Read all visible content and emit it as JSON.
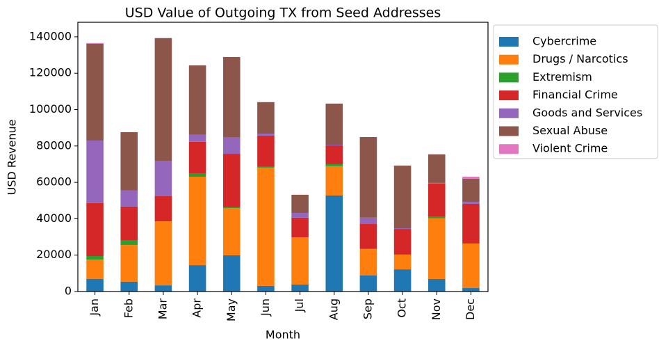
{
  "chart_data": {
    "type": "stacked_bar",
    "title": "USD Value of Outgoing TX from Seed Addresses",
    "x_label": "Month",
    "y_label": "USD Revenue",
    "categories": [
      "Jan",
      "Feb",
      "Mar",
      "Apr",
      "May",
      "Jun",
      "Jul",
      "Aug",
      "Sep",
      "Oct",
      "Nov",
      "Dec"
    ],
    "series": [
      {
        "name": "Cybercrime",
        "color": "#1f77b4",
        "values": [
          7000,
          5400,
          3400,
          14500,
          19900,
          3100,
          3800,
          52800,
          8800,
          12200,
          6900,
          1900
        ]
      },
      {
        "name": "Drugs / Narcotics",
        "color": "#ff7f0e",
        "values": [
          10600,
          20200,
          35200,
          48600,
          26000,
          65000,
          26000,
          16100,
          14500,
          8100,
          33300,
          24500
        ]
      },
      {
        "name": "Extremism",
        "color": "#2ca02c",
        "values": [
          1900,
          2700,
          0,
          1600,
          400,
          400,
          0,
          1100,
          400,
          0,
          1100,
          0
        ]
      },
      {
        "name": "Financial Crime",
        "color": "#d62728",
        "values": [
          29100,
          18400,
          13800,
          17600,
          29400,
          17200,
          10800,
          10300,
          13400,
          14100,
          18000,
          21800
        ]
      },
      {
        "name": "Goods and Services",
        "color": "#9467bd",
        "values": [
          34400,
          8800,
          19500,
          3800,
          9200,
          1100,
          2600,
          400,
          3500,
          400,
          400,
          1100
        ]
      },
      {
        "name": "Sexual Abuse",
        "color": "#8c564b",
        "values": [
          53200,
          32100,
          67400,
          38200,
          44000,
          17300,
          10000,
          22600,
          44300,
          34400,
          15700,
          12700
        ]
      },
      {
        "name": "Violent Crime",
        "color": "#e377c2",
        "values": [
          400,
          0,
          0,
          0,
          0,
          0,
          0,
          0,
          0,
          0,
          0,
          1100
        ]
      }
    ],
    "ylim": [
      0,
      148000
    ],
    "yticks": [
      0,
      20000,
      40000,
      60000,
      80000,
      100000,
      120000,
      140000
    ],
    "legend": "outside-right"
  }
}
